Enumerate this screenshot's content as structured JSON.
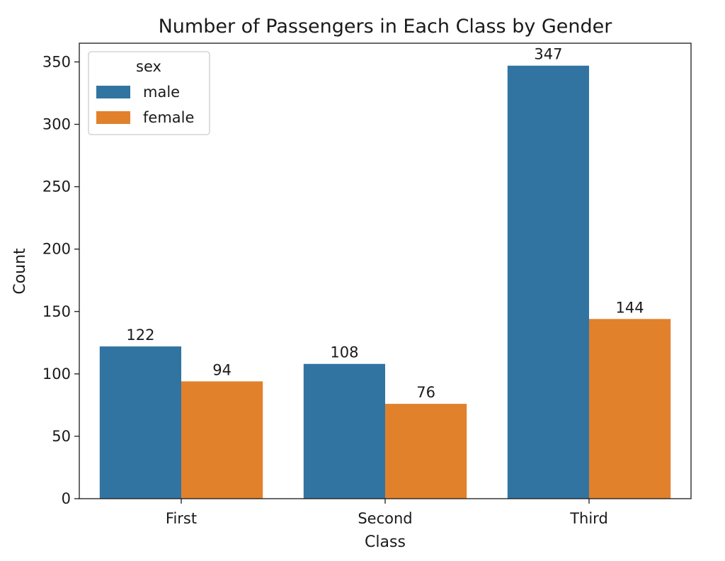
{
  "chart_data": {
    "type": "bar",
    "title": "Number of Passengers in Each Class by Gender",
    "xlabel": "Class",
    "ylabel": "Count",
    "categories": [
      "First",
      "Second",
      "Third"
    ],
    "series": [
      {
        "name": "male",
        "values": [
          122,
          108,
          347
        ],
        "color": "#3274a1"
      },
      {
        "name": "female",
        "values": [
          94,
          76,
          144
        ],
        "color": "#e1812c"
      }
    ],
    "ylim": [
      0,
      365
    ],
    "yticks": [
      0,
      50,
      100,
      150,
      200,
      250,
      300,
      350
    ],
    "grid": false,
    "legend": {
      "title": "sex",
      "position": "top-left"
    },
    "data_labels": true
  }
}
